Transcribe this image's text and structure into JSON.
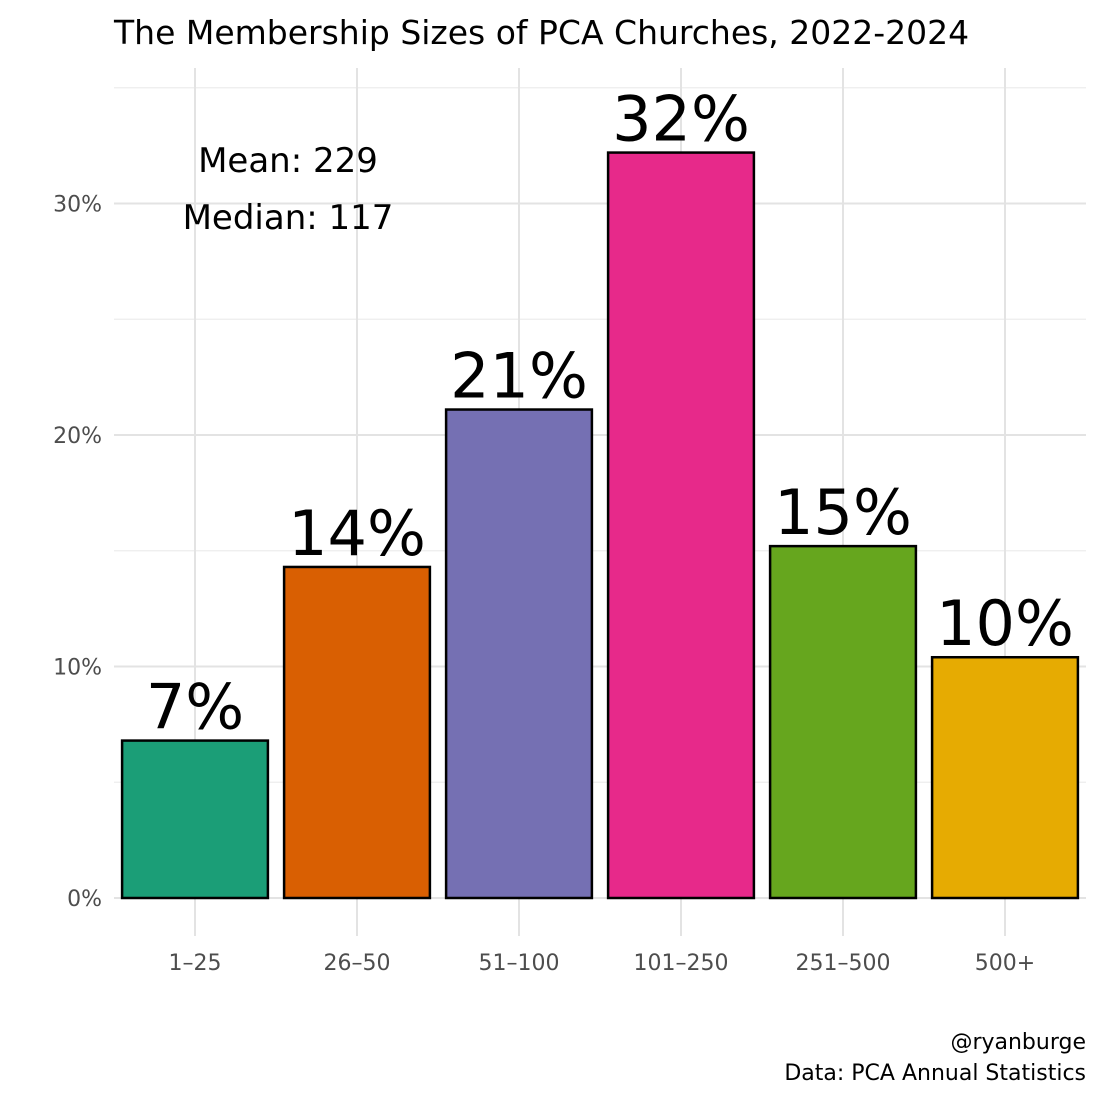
{
  "chart_data": {
    "type": "bar",
    "title": "The Membership Sizes of PCA Churches, 2022-2024",
    "xlabel": "",
    "ylabel": "",
    "categories": [
      "1–25",
      "26–50",
      "51–100",
      "101–250",
      "251–500",
      "500+"
    ],
    "values": [
      6.8,
      14.3,
      21.1,
      32.2,
      15.2,
      10.4
    ],
    "data_labels": [
      "7%",
      "14%",
      "21%",
      "32%",
      "15%",
      "10%"
    ],
    "colors": [
      "#1b9e77",
      "#d95f02",
      "#7570b3",
      "#e7298a",
      "#66a61e",
      "#e6ab02"
    ],
    "ylim": [
      0,
      35
    ],
    "yticks": [
      0,
      10,
      20,
      30
    ],
    "ytick_labels": [
      "0%",
      "10%",
      "20%",
      "30%"
    ],
    "grid": true,
    "legend": "none"
  },
  "annotation": {
    "mean": "Mean: 229",
    "median": "Median: 117"
  },
  "caption": {
    "handle": "@ryanburge",
    "source": "Data: PCA Annual Statistics"
  }
}
